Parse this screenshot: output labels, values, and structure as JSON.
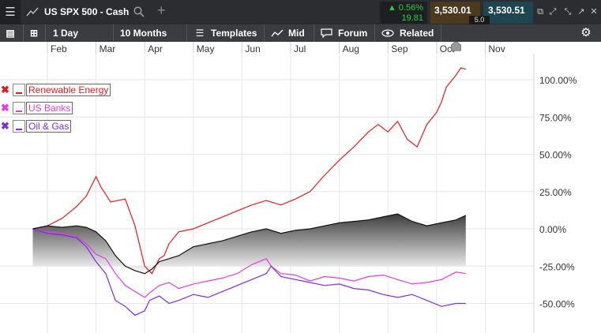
{
  "header": {
    "symbol": "US SPX 500 - Cash",
    "change_pct": "▲ 0.56%",
    "change_abs": "19.81",
    "bid": "3,530.01",
    "ask": "3,530.51",
    "spread": "5.0"
  },
  "toolbar": {
    "interval": "1 Day",
    "range": "10 Months",
    "templates": "Templates",
    "price_type": "Mid",
    "forum": "Forum",
    "related": "Related"
  },
  "legend": [
    {
      "label": "Renewable Energy",
      "color": "#e8191e"
    },
    {
      "label": "US Banks",
      "color": "#e53ae6"
    },
    {
      "label": "Oil & Gas",
      "color": "#7e2be6"
    }
  ],
  "colors": {
    "renewable": "#e8191e",
    "banks": "#e53ae6",
    "oil": "#7e2be6",
    "index_area": "#555555",
    "up": "#2ecc40"
  },
  "chart_data": {
    "type": "line",
    "x_axis": {
      "tick_labels": [
        "Feb",
        "Mar",
        "Apr",
        "May",
        "Jun",
        "Jul",
        "Aug",
        "Sep",
        "Oct",
        "Nov"
      ],
      "index_range": [
        0,
        10
      ]
    },
    "y_axis": {
      "tick_labels": [
        "100.00%",
        "75.00%",
        "50.00%",
        "25.00%",
        "0.00%",
        "-25.00%",
        "-50.00%"
      ],
      "tick_values": [
        100,
        75,
        50,
        25,
        0,
        -25,
        -50
      ],
      "ylim": [
        -60,
        112
      ],
      "position": "right"
    },
    "grid": true,
    "legend_placement": "top-left",
    "current_marker_value": 110,
    "series": [
      {
        "name": "Renewable Energy",
        "color": "#e8191e",
        "x": [
          -0.3,
          0,
          0.3,
          0.6,
          0.8,
          1.0,
          1.1,
          1.3,
          1.6,
          1.8,
          2.0,
          2.15,
          2.3,
          2.4,
          2.5,
          2.7,
          3.0,
          3.3,
          3.6,
          3.9,
          4.2,
          4.5,
          4.8,
          5.1,
          5.4,
          5.7,
          6.0,
          6.3,
          6.6,
          6.8,
          7.0,
          7.2,
          7.4,
          7.6,
          7.8,
          8.0,
          8.1,
          8.2,
          8.4,
          8.5,
          8.6
        ],
        "y": [
          0,
          2,
          7,
          15,
          22,
          35,
          28,
          18,
          20,
          2,
          -25,
          -30,
          -20,
          -18,
          -10,
          -2,
          0,
          4,
          8,
          12,
          16,
          19,
          16,
          20,
          25,
          36,
          46,
          55,
          65,
          70,
          65,
          72,
          60,
          55,
          70,
          78,
          85,
          95,
          103,
          108,
          107
        ]
      },
      {
        "name": "US Banks",
        "color": "#e53ae6",
        "x": [
          -0.3,
          0,
          0.3,
          0.6,
          0.8,
          1.0,
          1.2,
          1.4,
          1.6,
          1.8,
          2.0,
          2.1,
          2.3,
          2.5,
          2.7,
          3.0,
          3.3,
          3.6,
          3.9,
          4.2,
          4.5,
          4.6,
          4.8,
          5.1,
          5.4,
          5.7,
          6.0,
          6.3,
          6.6,
          6.9,
          7.2,
          7.5,
          7.8,
          8.1,
          8.4,
          8.6
        ],
        "y": [
          0,
          -2,
          -3,
          -5,
          -10,
          -17,
          -20,
          -30,
          -38,
          -42,
          -46,
          -43,
          -38,
          -36,
          -40,
          -37,
          -35,
          -33,
          -30,
          -24,
          -20,
          -25,
          -30,
          -31,
          -35,
          -32,
          -33,
          -35,
          -32,
          -31,
          -34,
          -37,
          -36,
          -34,
          -29,
          -30
        ]
      },
      {
        "name": "Oil & Gas",
        "color": "#7e2be6",
        "x": [
          -0.3,
          0,
          0.3,
          0.6,
          0.8,
          1.0,
          1.2,
          1.4,
          1.6,
          1.8,
          2.0,
          2.1,
          2.3,
          2.5,
          2.7,
          3.0,
          3.3,
          3.6,
          3.9,
          4.2,
          4.5,
          4.6,
          4.8,
          5.1,
          5.4,
          5.7,
          6.0,
          6.3,
          6.6,
          6.9,
          7.2,
          7.5,
          7.8,
          8.1,
          8.4,
          8.6
        ],
        "y": [
          0,
          -3,
          -4,
          -6,
          -12,
          -22,
          -30,
          -48,
          -52,
          -58,
          -55,
          -48,
          -45,
          -50,
          -48,
          -44,
          -46,
          -42,
          -38,
          -34,
          -30,
          -25,
          -32,
          -34,
          -36,
          -38,
          -37,
          -40,
          -41,
          -44,
          -46,
          -44,
          -48,
          -52,
          -50,
          -50
        ]
      },
      {
        "name": "US SPX 500 - Cash",
        "color": "#555555",
        "x": [
          -0.3,
          0,
          0.3,
          0.6,
          0.8,
          1.0,
          1.2,
          1.4,
          1.6,
          1.8,
          2.0,
          2.15,
          2.3,
          2.5,
          2.7,
          3.0,
          3.3,
          3.6,
          3.9,
          4.2,
          4.5,
          4.8,
          5.1,
          5.4,
          5.7,
          6.0,
          6.3,
          6.6,
          6.9,
          7.2,
          7.5,
          7.8,
          8.1,
          8.4,
          8.6
        ],
        "y": [
          0,
          2,
          1,
          2,
          1,
          -2,
          -8,
          -18,
          -25,
          -28,
          -30,
          -27,
          -22,
          -20,
          -18,
          -12,
          -10,
          -8,
          -5,
          -2,
          0,
          -3,
          -1,
          0,
          2,
          4,
          5,
          6,
          8,
          10,
          5,
          2,
          4,
          6,
          9
        ]
      }
    ]
  }
}
